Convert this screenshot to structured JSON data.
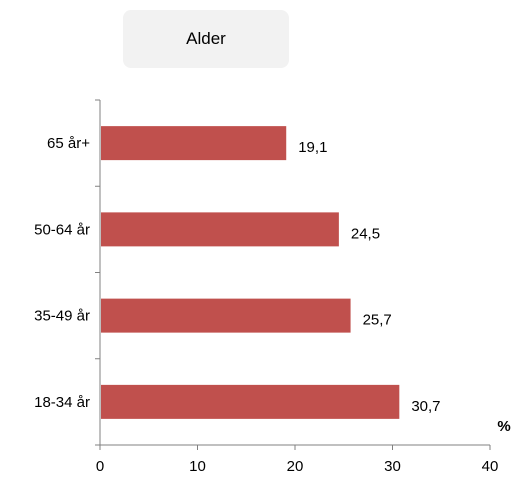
{
  "chart_data": {
    "type": "bar",
    "orientation": "horizontal",
    "title": "Alder",
    "categories": [
      "65 år+",
      "50-64 år",
      "35-49 år",
      "18-34 år"
    ],
    "values": [
      19.1,
      24.5,
      25.7,
      30.7
    ],
    "value_labels": [
      "19,1",
      "24,5",
      "25,7",
      "30,7"
    ],
    "xlim": [
      0,
      40
    ],
    "xticks": [
      0,
      10,
      20,
      30,
      40
    ],
    "unit_label": "%",
    "bar_color": "#c0504d",
    "grid": false,
    "legend": "none"
  }
}
